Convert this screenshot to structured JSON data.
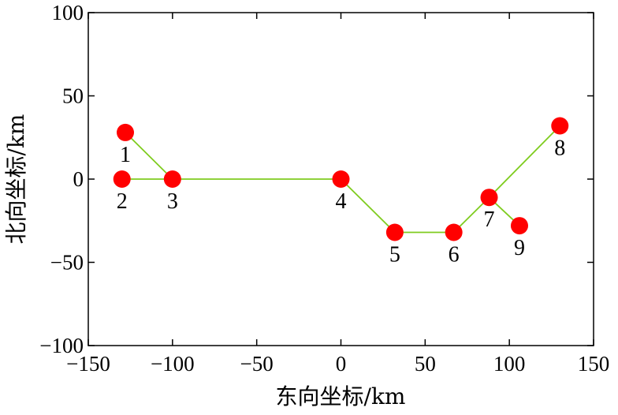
{
  "chart_data": {
    "type": "scatter",
    "xlabel": "东向坐标/km",
    "ylabel": "北向坐标/km",
    "xlim": [
      -150,
      150
    ],
    "ylim": [
      -100,
      100
    ],
    "xticks": [
      -150,
      -100,
      -50,
      0,
      50,
      100,
      150
    ],
    "yticks": [
      -100,
      -50,
      0,
      50,
      100
    ],
    "xtick_labels": [
      "−150",
      "−100",
      "−50",
      "0",
      "50",
      "100",
      "150"
    ],
    "ytick_labels": [
      "−100",
      "−50",
      "0",
      "50",
      "100"
    ],
    "grid": false,
    "points": [
      {
        "label": "1",
        "x": -128,
        "y": 28
      },
      {
        "label": "2",
        "x": -130,
        "y": 0
      },
      {
        "label": "3",
        "x": -100,
        "y": 0
      },
      {
        "label": "4",
        "x": 0,
        "y": 0
      },
      {
        "label": "5",
        "x": 32,
        "y": -32
      },
      {
        "label": "6",
        "x": 67,
        "y": -32
      },
      {
        "label": "7",
        "x": 88,
        "y": -11
      },
      {
        "label": "8",
        "x": 130,
        "y": 32
      },
      {
        "label": "9",
        "x": 106,
        "y": -28
      }
    ],
    "edges": [
      [
        "1",
        "3"
      ],
      [
        "2",
        "3"
      ],
      [
        "3",
        "4"
      ],
      [
        "4",
        "5"
      ],
      [
        "5",
        "6"
      ],
      [
        "6",
        "7"
      ],
      [
        "7",
        "8"
      ],
      [
        "7",
        "9"
      ]
    ],
    "point_color": "#ff0000",
    "line_color": "#7fcc1f"
  }
}
